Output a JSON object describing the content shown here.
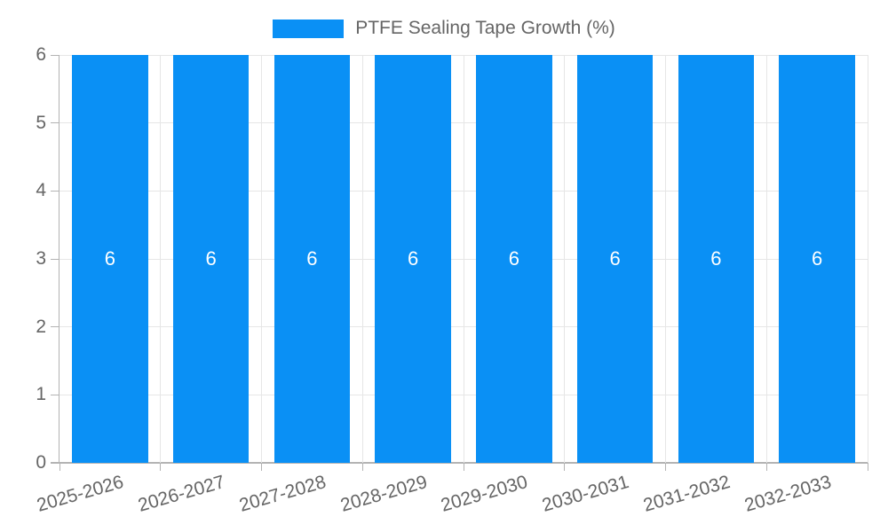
{
  "chart_data": {
    "type": "bar",
    "title": "PTFE Sealing Tape Growth (%)",
    "categories": [
      "2025-2026",
      "2026-2027",
      "2027-2028",
      "2028-2029",
      "2029-2030",
      "2030-2031",
      "2031-2032",
      "2032-2033"
    ],
    "series": [
      {
        "name": "PTFE Sealing Tape Growth (%)",
        "values": [
          6,
          6,
          6,
          6,
          6,
          6,
          6,
          6
        ]
      }
    ],
    "bar_labels": [
      "6",
      "6",
      "6",
      "6",
      "6",
      "6",
      "6",
      "6"
    ],
    "xlabel": "",
    "ylabel": "",
    "ylim": [
      0,
      6
    ],
    "yticks": [
      0,
      1,
      2,
      3,
      4,
      5,
      6
    ],
    "grid": true,
    "legend_position": "top-center",
    "x_label_rotation_deg": -16,
    "colors": {
      "bar": "#0a90f5",
      "grid": "#e6e6e6",
      "axis": "#b3b3b3",
      "tick_text": "#666666",
      "legend_text": "#666666",
      "bar_label": "#ffffff",
      "background": "#ffffff"
    }
  }
}
